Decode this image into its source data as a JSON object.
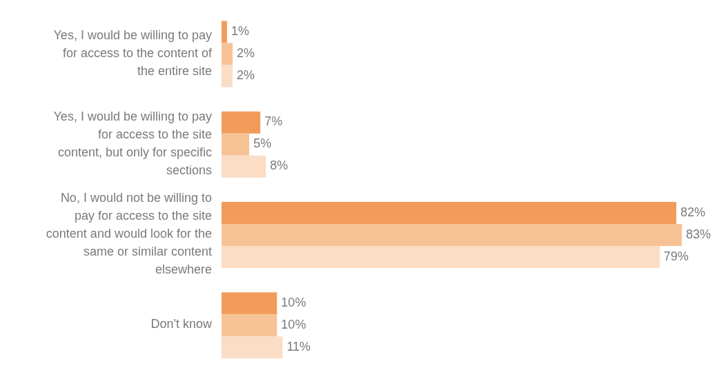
{
  "chart_data": {
    "type": "bar",
    "orientation": "horizontal",
    "categories": [
      "Yes, I would be willing to pay for access to the content of the entire site",
      "Yes, I would be willing to pay for access to the site content, but only for specific sections",
      "No, I would not be willing to pay for access to the site content and would look for the same or similar content elsewhere",
      "Don't know"
    ],
    "series": [
      {
        "color": "#f29c5c",
        "values": [
          1,
          7,
          82,
          10
        ],
        "value_labels": [
          "1%",
          "7%",
          "82%",
          "10%"
        ]
      },
      {
        "color": "#f7c296",
        "values": [
          2,
          5,
          83,
          10
        ],
        "value_labels": [
          "2%",
          "5%",
          "83%",
          "10%"
        ]
      },
      {
        "color": "#fbdcc4",
        "values": [
          2,
          8,
          79,
          11
        ],
        "value_labels": [
          "2%",
          "8%",
          "79%",
          "11%"
        ]
      }
    ],
    "legend": false,
    "grid": false
  }
}
